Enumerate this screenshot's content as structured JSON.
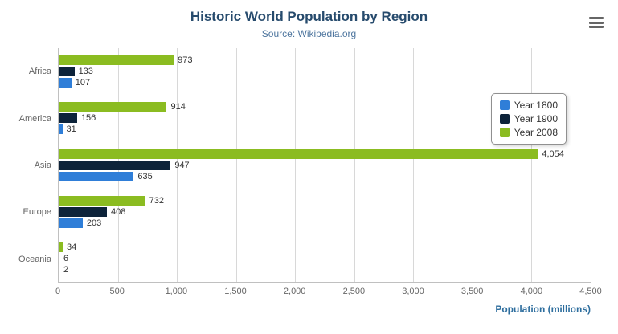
{
  "chart": {
    "title": "Historic World Population by Region",
    "subtitle": "Source: Wikipedia.org",
    "xlabel": "Population (millions)"
  },
  "chart_data": {
    "type": "bar",
    "orientation": "horizontal",
    "title": "Historic World Population by Region",
    "subtitle": "Source: Wikipedia.org",
    "xlabel": "Population (millions)",
    "categories": [
      "Africa",
      "America",
      "Asia",
      "Europe",
      "Oceania"
    ],
    "series": [
      {
        "name": "Year 1800",
        "color": "#2f7ed8",
        "values": [
          107,
          31,
          635,
          203,
          2
        ]
      },
      {
        "name": "Year 1900",
        "color": "#0d233a",
        "values": [
          133,
          156,
          947,
          408,
          6
        ]
      },
      {
        "name": "Year 2008",
        "color": "#8bbc21",
        "values": [
          973,
          914,
          4054,
          732,
          34
        ]
      }
    ],
    "display_order": [
      2,
      1,
      0
    ],
    "xlim": [
      0,
      4500
    ],
    "tick_interval": 500,
    "tick_labels": [
      "0",
      "500",
      "1,000",
      "1,500",
      "2,000",
      "2,500",
      "3,000",
      "3,500",
      "4,000",
      "4,500"
    ],
    "grid": true,
    "legend_position": "right"
  }
}
